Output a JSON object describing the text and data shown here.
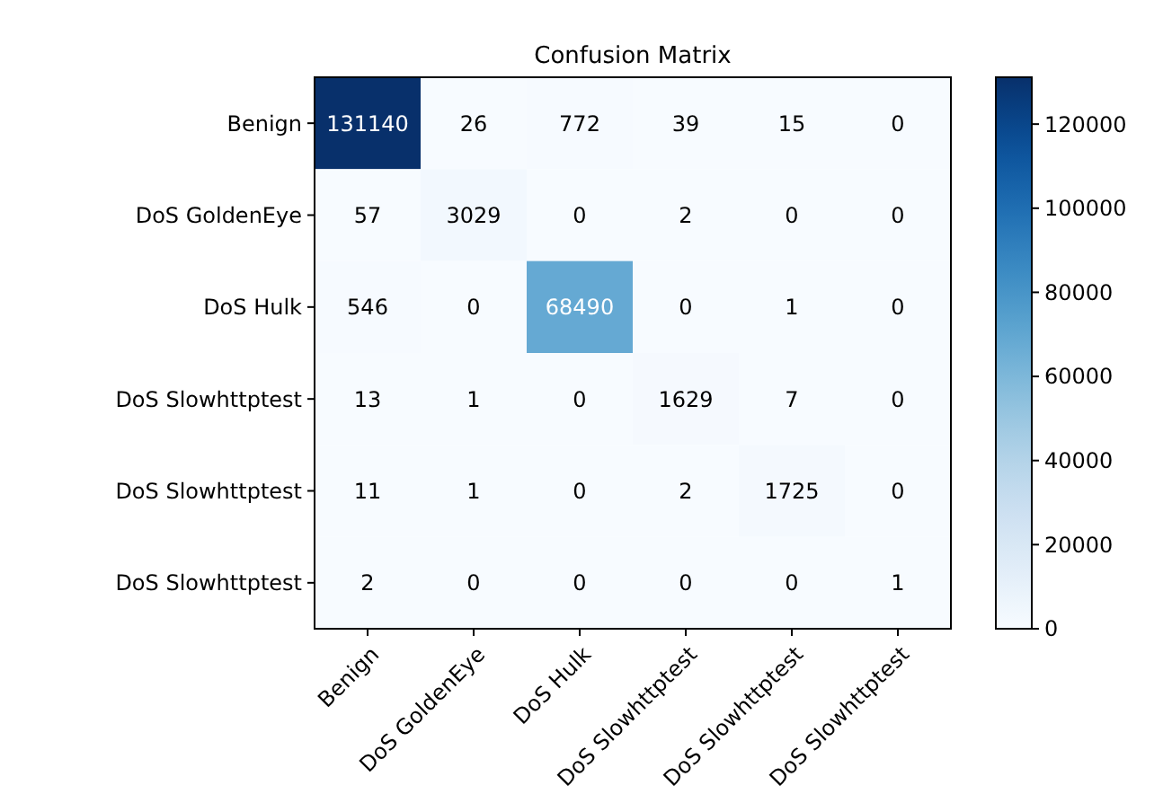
{
  "chart_data": {
    "type": "heatmap",
    "title": "Confusion Matrix",
    "categories": [
      "Benign",
      "DoS GoldenEye",
      "DoS Hulk",
      "DoS Slowhttptest",
      "DoS Slowhttptest",
      "DoS Slowhttptest"
    ],
    "y_categories": [
      "Benign",
      "DoS GoldenEye",
      "DoS Hulk",
      "DoS Slowhttptest",
      "DoS Slowhttptest",
      "DoS Slowhttptest"
    ],
    "cells": [
      [
        131140,
        26,
        772,
        39,
        15,
        0
      ],
      [
        57,
        3029,
        0,
        2,
        0,
        0
      ],
      [
        546,
        0,
        68490,
        0,
        1,
        0
      ],
      [
        13,
        1,
        0,
        1629,
        7,
        0
      ],
      [
        11,
        1,
        0,
        2,
        1725,
        0
      ],
      [
        2,
        0,
        0,
        0,
        0,
        1
      ]
    ],
    "data_labels": true,
    "clim": [
      0,
      131140
    ],
    "cticks": [
      0,
      20000,
      40000,
      60000,
      80000,
      100000,
      120000
    ]
  }
}
